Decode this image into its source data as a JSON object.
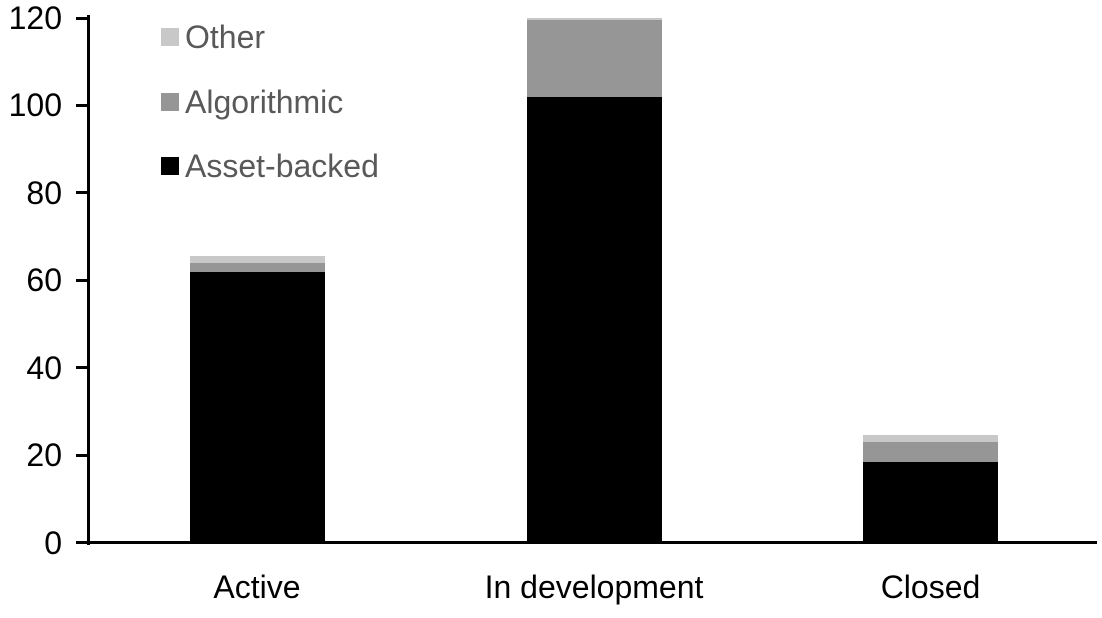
{
  "chart_data": {
    "type": "bar",
    "stacked": true,
    "title": "",
    "xlabel": "",
    "ylabel": "",
    "categories": [
      "Active",
      "In development",
      "Closed"
    ],
    "series": [
      {
        "name": "Asset-backed",
        "color": "#000000",
        "values": [
          62,
          102,
          18.5
        ]
      },
      {
        "name": "Algorithmic",
        "color": "#969696",
        "values": [
          2,
          17.5,
          4.5
        ]
      },
      {
        "name": "Other",
        "color": "#c8c8c8",
        "values": [
          1.5,
          0.5,
          1.5
        ]
      }
    ],
    "totals": [
      65.5,
      120,
      24.5
    ],
    "y_axis": {
      "min": 0,
      "max": 120,
      "tick_step": 20,
      "ticks": [
        "0",
        "20",
        "40",
        "60",
        "80",
        "100",
        "120"
      ]
    },
    "legend": {
      "position": "top-left",
      "order": [
        "Other",
        "Algorithmic",
        "Asset-backed"
      ],
      "text_color": "#595959"
    },
    "grid": false,
    "background": "#ffffff"
  }
}
